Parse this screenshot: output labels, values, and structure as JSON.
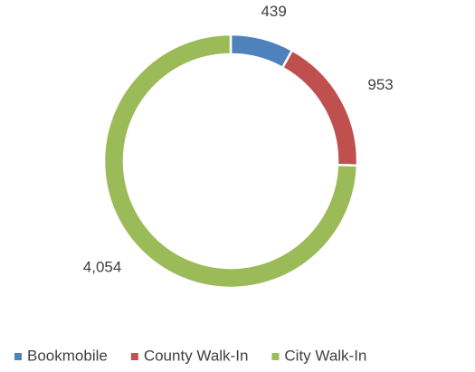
{
  "chart_data": {
    "type": "donut",
    "categories": [
      "Bookmobile",
      "County Walk-In",
      "City Walk-In"
    ],
    "values": [
      439,
      953,
      4054
    ],
    "value_labels": [
      "439",
      "953",
      "4,054"
    ],
    "colors": [
      "#4f81bd",
      "#c0504d",
      "#9bbb59"
    ],
    "legend": "bottom"
  }
}
